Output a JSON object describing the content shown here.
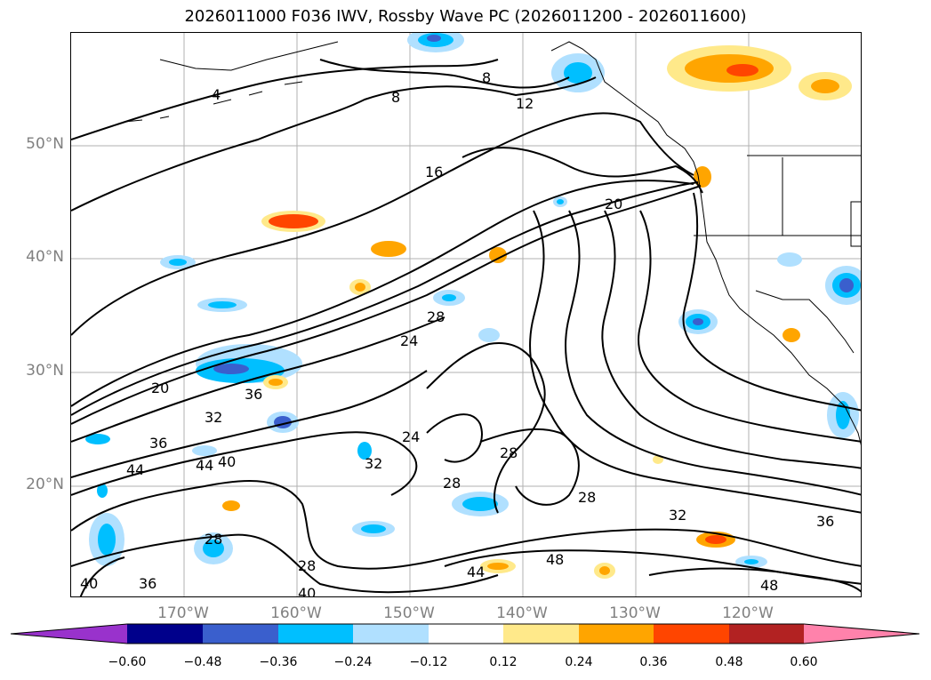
{
  "title": "2026011000 F036 IWV, Rossby Wave PC (2026011200 - 2026011600)",
  "lat_labels": [
    "50°N",
    "40°N",
    "30°N",
    "20°N"
  ],
  "lon_labels": [
    "170°W",
    "160°W",
    "150°W",
    "140°W",
    "130°W",
    "120°W"
  ],
  "colorbar": {
    "ticks": [
      "−0.60",
      "−0.48",
      "−0.36",
      "−0.24",
      "−0.12",
      "0.12",
      "0.24",
      "0.36",
      "0.48",
      "0.60"
    ],
    "colors": [
      "#9932CC",
      "#00008B",
      "#3A5FCD",
      "#00BFFF",
      "#B0E0FF",
      "#FFFFFF",
      "#FFE98A",
      "#FFA500",
      "#FF4500",
      "#B22222",
      "#FF82AB"
    ]
  },
  "contour_labels": [
    "4",
    "8",
    "8",
    "12",
    "16",
    "20",
    "20",
    "24",
    "24",
    "28",
    "28",
    "28",
    "28",
    "28",
    "28",
    "32",
    "32",
    "32",
    "36",
    "36",
    "36",
    "36",
    "40",
    "40",
    "40",
    "44",
    "44",
    "44",
    "48",
    "48"
  ]
}
